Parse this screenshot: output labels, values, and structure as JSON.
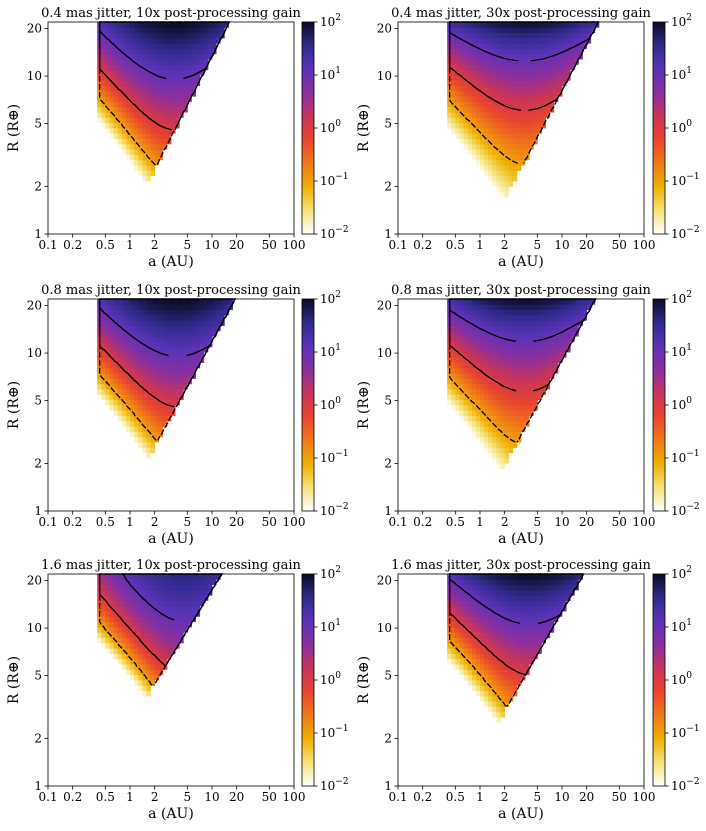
{
  "figure": {
    "colormap": [
      "#ffffff",
      "#f4e27a",
      "#f0b000",
      "#f07a18",
      "#e8452e",
      "#c8345a",
      "#8a2fa0",
      "#5b33b8",
      "#2f2a8c",
      "#0b0b20"
    ]
  },
  "chart_data": [
    {
      "type": "heatmap",
      "title": "0.4 mas jitter, 10x post-processing gain",
      "xlabel": "a (AU)",
      "ylabel": "R (R⊕)",
      "xscale": "log",
      "yscale": "log",
      "xlim": [
        0.1,
        100
      ],
      "ylim": [
        1,
        22
      ],
      "xticks": [
        0.1,
        0.2,
        0.5,
        1,
        2,
        5,
        10,
        20,
        50,
        100
      ],
      "xtick_labels": [
        "0.1",
        "0.2",
        "0.5",
        "1",
        "2",
        "5",
        "10",
        "20",
        "50",
        "100"
      ],
      "yticks": [
        1,
        2,
        5,
        10,
        20
      ],
      "ytick_labels": [
        "1",
        "2",
        "5",
        "10",
        "20"
      ],
      "colorbar": {
        "scale": "log",
        "range": [
          0.01,
          100
        ],
        "tick_exponents": [
          "−2",
          "−1",
          "0",
          "1",
          "2"
        ]
      },
      "model": {
        "a_inner": 0.42,
        "a_center": 3.5,
        "peak_R": 22,
        "peak_log_value": 2.0,
        "a_outer_at_R1": 0.8,
        "outer_slope": 1.02,
        "falloff_power": 1.1
      },
      "contours": [
        {
          "level": 0.1
        },
        {
          "level": 1
        },
        {
          "level": 10
        }
      ]
    },
    {
      "type": "heatmap",
      "title": "0.4 mas jitter, 30x post-processing gain",
      "xlabel": "a (AU)",
      "ylabel": "R (R⊕)",
      "xscale": "log",
      "yscale": "log",
      "xlim": [
        0.1,
        100
      ],
      "ylim": [
        1,
        22
      ],
      "xticks": [
        0.1,
        0.2,
        0.5,
        1,
        2,
        5,
        10,
        20,
        50,
        100
      ],
      "xtick_labels": [
        "0.1",
        "0.2",
        "0.5",
        "1",
        "2",
        "5",
        "10",
        "20",
        "50",
        "100"
      ],
      "yticks": [
        1,
        2,
        5,
        10,
        20
      ],
      "ytick_labels": [
        "1",
        "2",
        "5",
        "10",
        "20"
      ],
      "colorbar": {
        "scale": "log",
        "range": [
          0.01,
          100
        ],
        "tick_exponents": [
          "−2",
          "−1",
          "0",
          "1",
          "2"
        ]
      },
      "model": {
        "a_inner": 0.42,
        "a_center": 3.5,
        "peak_R": 22,
        "peak_log_value": 2.0,
        "a_outer_at_R1": 1.2,
        "outer_slope": 0.98,
        "falloff_power": 0.85
      },
      "contours": [
        {
          "level": 0.1
        },
        {
          "level": 1
        },
        {
          "level": 10
        }
      ]
    },
    {
      "type": "heatmap",
      "title": "0.8 mas jitter, 10x post-processing gain",
      "xlabel": "a (AU)",
      "ylabel": "R (R⊕)",
      "xscale": "log",
      "yscale": "log",
      "xlim": [
        0.1,
        100
      ],
      "ylim": [
        1,
        22
      ],
      "xticks": [
        0.1,
        0.2,
        0.5,
        1,
        2,
        5,
        10,
        20,
        50,
        100
      ],
      "xtick_labels": [
        "0.1",
        "0.2",
        "0.5",
        "1",
        "2",
        "5",
        "10",
        "20",
        "50",
        "100"
      ],
      "yticks": [
        1,
        2,
        5,
        10,
        20
      ],
      "ytick_labels": [
        "1",
        "2",
        "5",
        "10",
        "20"
      ],
      "colorbar": {
        "scale": "log",
        "range": [
          0.01,
          100
        ],
        "tick_exponents": [
          "−2",
          "−1",
          "0",
          "1",
          "2"
        ]
      },
      "model": {
        "a_inner": 0.42,
        "a_center": 3.8,
        "peak_R": 22,
        "peak_log_value": 2.0,
        "a_outer_at_R1": 0.75,
        "outer_slope": 0.95,
        "falloff_power": 1.1,
        "R_min": 1.3
      },
      "contours": [
        {
          "level": 0.1
        },
        {
          "level": 1
        },
        {
          "level": 10
        }
      ]
    },
    {
      "type": "heatmap",
      "title": "0.8 mas jitter, 30x post-processing gain",
      "xlabel": "a (AU)",
      "ylabel": "R (R⊕)",
      "xscale": "log",
      "yscale": "log",
      "xlim": [
        0.1,
        100
      ],
      "ylim": [
        1,
        22
      ],
      "xticks": [
        0.1,
        0.2,
        0.5,
        1,
        2,
        5,
        10,
        20,
        50,
        100
      ],
      "xtick_labels": [
        "0.1",
        "0.2",
        "0.5",
        "1",
        "2",
        "5",
        "10",
        "20",
        "50",
        "100"
      ],
      "yticks": [
        1,
        2,
        5,
        10,
        20
      ],
      "ytick_labels": [
        "1",
        "2",
        "5",
        "10",
        "20"
      ],
      "colorbar": {
        "scale": "log",
        "range": [
          0.01,
          100
        ],
        "tick_exponents": [
          "−2",
          "−1",
          "0",
          "1",
          "2"
        ]
      },
      "model": {
        "a_inner": 0.42,
        "a_center": 3.5,
        "peak_R": 22,
        "peak_log_value": 2.0,
        "a_outer_at_R1": 1.0,
        "outer_slope": 0.95,
        "falloff_power": 0.9
      },
      "contours": [
        {
          "level": 0.1
        },
        {
          "level": 1
        },
        {
          "level": 10
        }
      ]
    },
    {
      "type": "heatmap",
      "title": "1.6 mas jitter, 10x post-processing gain",
      "xlabel": "a (AU)",
      "ylabel": "R (R⊕)",
      "xscale": "log",
      "yscale": "log",
      "xlim": [
        0.1,
        100
      ],
      "ylim": [
        1,
        22
      ],
      "xticks": [
        0.1,
        0.2,
        0.5,
        1,
        2,
        5,
        10,
        20,
        50,
        100
      ],
      "xtick_labels": [
        "0.1",
        "0.2",
        "0.5",
        "1",
        "2",
        "5",
        "10",
        "20",
        "50",
        "100"
      ],
      "yticks": [
        1,
        2,
        5,
        10,
        20
      ],
      "ytick_labels": [
        "1",
        "2",
        "5",
        "10",
        "20"
      ],
      "colorbar": {
        "scale": "log",
        "range": [
          0.01,
          100
        ],
        "tick_exponents": [
          "−2",
          "−1",
          "0",
          "1",
          "2"
        ]
      },
      "model": {
        "a_inner": 0.42,
        "a_center": 4.5,
        "peak_R": 22,
        "peak_log_value": 1.6,
        "a_outer_at_R1": 0.35,
        "outer_slope": 0.85,
        "falloff_power": 1.3,
        "R_min": 2.5
      },
      "contours": [
        {
          "level": 0.1
        },
        {
          "level": 1
        },
        {
          "level": 10
        }
      ]
    },
    {
      "type": "heatmap",
      "title": "1.6 mas jitter, 30x post-processing gain",
      "xlabel": "a (AU)",
      "ylabel": "R (R⊕)",
      "xscale": "log",
      "yscale": "log",
      "xlim": [
        0.1,
        100
      ],
      "ylim": [
        1,
        22
      ],
      "xticks": [
        0.1,
        0.2,
        0.5,
        1,
        2,
        5,
        10,
        20,
        50,
        100
      ],
      "xtick_labels": [
        "0.1",
        "0.2",
        "0.5",
        "1",
        "2",
        "5",
        "10",
        "20",
        "50",
        "100"
      ],
      "yticks": [
        1,
        2,
        5,
        10,
        20
      ],
      "ytick_labels": [
        "1",
        "2",
        "5",
        "10",
        "20"
      ],
      "colorbar": {
        "scale": "log",
        "range": [
          0.01,
          100
        ],
        "tick_exponents": [
          "−2",
          "−1",
          "0",
          "1",
          "2"
        ]
      },
      "model": {
        "a_inner": 0.42,
        "a_center": 4.0,
        "peak_R": 22,
        "peak_log_value": 2.0,
        "a_outer_at_R1": 0.6,
        "outer_slope": 0.9,
        "falloff_power": 1.0,
        "R_min": 1.35
      },
      "contours": [
        {
          "level": 0.1
        },
        {
          "level": 1
        },
        {
          "level": 10
        }
      ]
    }
  ]
}
